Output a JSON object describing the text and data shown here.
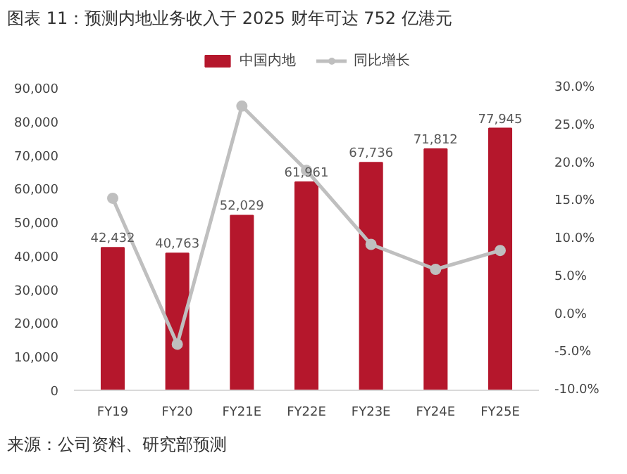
{
  "chart_data": {
    "type": "bar",
    "title": "图表 11：预测内地业务收入于 2025 财年可达 752 亿港元",
    "annotations": [
      "来源：公司资料、研究部预测"
    ],
    "categories": [
      "FY19",
      "FY20",
      "FY21E",
      "FY22E",
      "FY23E",
      "FY24E",
      "FY25E"
    ],
    "series": [
      {
        "name": "中国内地",
        "color": "#b5172c",
        "values": [
          42432,
          40763,
          52029,
          61961,
          67736,
          71812,
          77945
        ],
        "value_labels": [
          "42,432",
          "40,763",
          "52,029",
          "61,961",
          "67,736",
          "71,812",
          "77,945"
        ]
      },
      {
        "name": "同比增长",
        "type": "line",
        "axis": "y2",
        "color": "#bfbfbf",
        "marker": "circle",
        "values": [
          15.4,
          -3.9,
          27.6,
          19.1,
          9.3,
          6.0,
          8.5
        ]
      }
    ],
    "ylim": [
      0,
      90000
    ],
    "yticks": [
      {
        "value": 0,
        "label": "0"
      },
      {
        "value": 10000,
        "label": "10,000"
      },
      {
        "value": 20000,
        "label": "20,000"
      },
      {
        "value": 30000,
        "label": "30,000"
      },
      {
        "value": 40000,
        "label": "40,000"
      },
      {
        "value": 50000,
        "label": "50,000"
      },
      {
        "value": 60000,
        "label": "60,000"
      },
      {
        "value": 70000,
        "label": "70,000"
      },
      {
        "value": 80000,
        "label": "80,000"
      },
      {
        "value": 90000,
        "label": "90,000"
      }
    ],
    "y2lim": [
      -10,
      30
    ],
    "y2ticks": [
      {
        "value": -10,
        "label": "-10.0%"
      },
      {
        "value": -5,
        "label": "-5.0%"
      },
      {
        "value": 0,
        "label": "0.0%"
      },
      {
        "value": 5,
        "label": "5.0%"
      },
      {
        "value": 10,
        "label": "10.0%"
      },
      {
        "value": 15,
        "label": "15.0%"
      },
      {
        "value": 20,
        "label": "20.0%"
      },
      {
        "value": 25,
        "label": "25.0%"
      },
      {
        "value": 30,
        "label": "30.0%"
      }
    ],
    "grid": false,
    "legend": "top"
  }
}
